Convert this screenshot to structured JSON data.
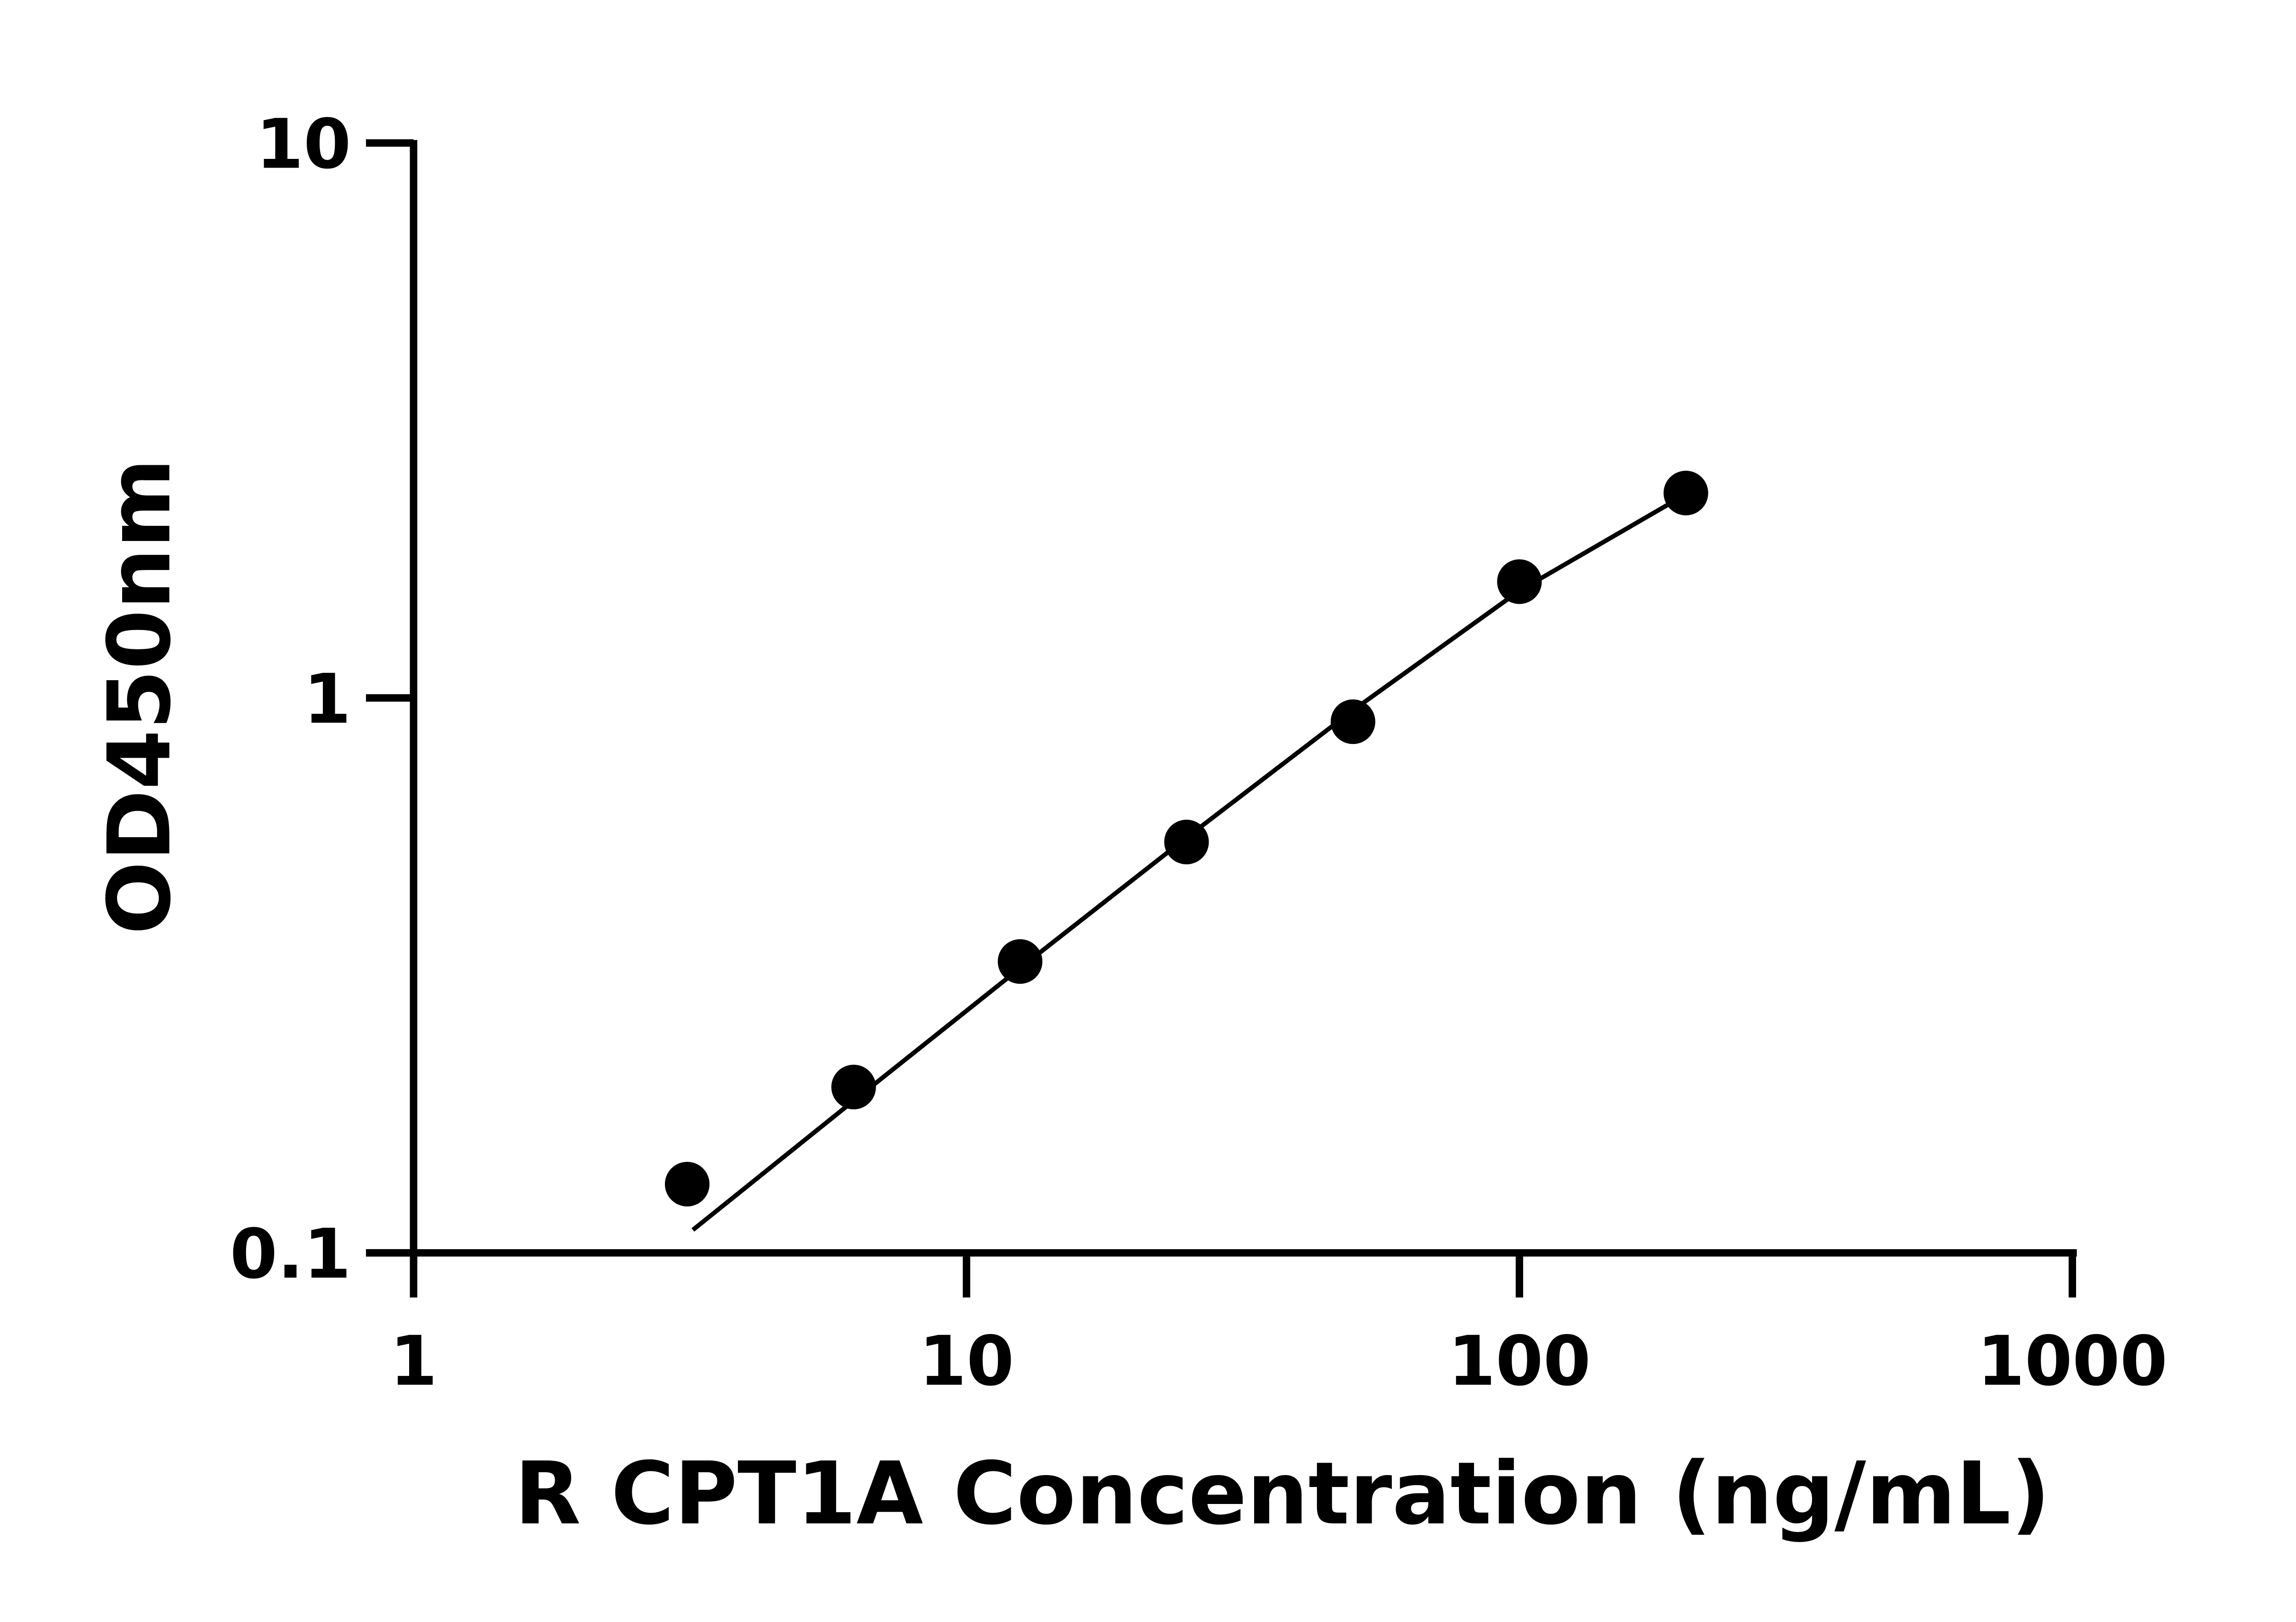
{
  "chart_data": {
    "type": "scatter",
    "xlabel": "R CPT1A Concentration (ng/mL)",
    "ylabel": "OD450nm",
    "x": [
      3.125,
      6.25,
      12.5,
      25,
      50,
      100,
      200
    ],
    "values": [
      0.133,
      0.199,
      0.335,
      0.55,
      0.906,
      1.62,
      2.34
    ],
    "fit": {
      "x": [
        3.2,
        6.25,
        12.5,
        25,
        50,
        100,
        190
      ],
      "values": [
        0.11,
        0.188,
        0.326,
        0.56,
        0.95,
        1.56,
        2.26
      ]
    },
    "color": "#000000",
    "xscale": "log",
    "yscale": "log",
    "xlim": [
      1,
      1000
    ],
    "ylim": [
      0.1,
      10
    ],
    "xticks": [
      1,
      10,
      100,
      1000
    ],
    "yticks": [
      0.1,
      1,
      10
    ],
    "grid": false
  }
}
